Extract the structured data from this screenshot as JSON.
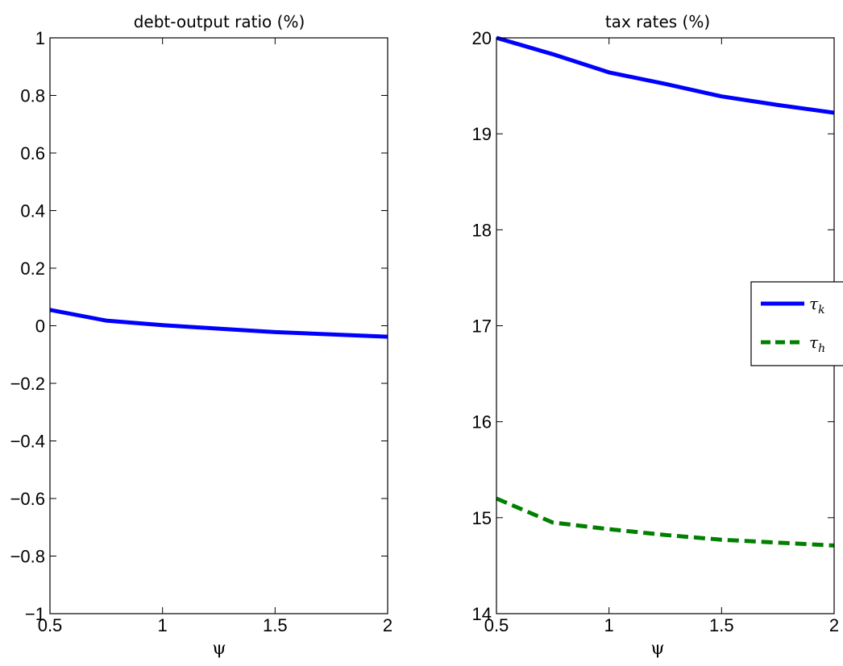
{
  "colors": {
    "series_tau_k": "#0000ff",
    "series_tau_h": "#007f00"
  },
  "chart_data": [
    {
      "type": "line",
      "title": "debt-output ratio (%)",
      "xlabel": "ψ",
      "ylabel": "",
      "xlim": [
        0.5,
        2
      ],
      "ylim": [
        -1,
        1
      ],
      "xticks": [
        0.5,
        1,
        1.5,
        2
      ],
      "xtick_labels": [
        "0.5",
        "1",
        "1.5",
        "2"
      ],
      "yticks": [
        -1,
        -0.8,
        -0.6,
        -0.4,
        -0.2,
        0,
        0.2,
        0.4,
        0.6,
        0.8,
        1
      ],
      "ytick_labels": [
        "−1",
        "−0.8",
        "−0.6",
        "−0.4",
        "−0.2",
        "0",
        "0.2",
        "0.4",
        "0.6",
        "0.8",
        "1"
      ],
      "grid": false,
      "series": [
        {
          "color": "#0000ff",
          "style": "solid",
          "x": [
            0.5,
            0.75,
            1,
            1.25,
            1.5,
            1.75,
            2
          ],
          "y": [
            0.055,
            0.018,
            0.002,
            -0.01,
            -0.022,
            -0.03,
            -0.038
          ]
        }
      ]
    },
    {
      "type": "line",
      "title": "tax rates (%)",
      "xlabel": "ψ",
      "ylabel": "",
      "xlim": [
        0.5,
        2
      ],
      "ylim": [
        14,
        20
      ],
      "xticks": [
        0.5,
        1,
        1.5,
        2
      ],
      "xtick_labels": [
        "0.5",
        "1",
        "1.5",
        "2"
      ],
      "yticks": [
        14,
        15,
        16,
        17,
        18,
        19,
        20
      ],
      "ytick_labels": [
        "14",
        "15",
        "16",
        "17",
        "18",
        "19",
        "20"
      ],
      "grid": false,
      "legend": {
        "placement": "right",
        "entries": [
          {
            "symbol": "τ",
            "subscript": "k",
            "color": "#0000ff",
            "style": "solid"
          },
          {
            "symbol": "τ",
            "subscript": "h",
            "color": "#007f00",
            "style": "dashed"
          }
        ]
      },
      "series": [
        {
          "name": "τk",
          "color": "#0000ff",
          "style": "solid",
          "x": [
            0.5,
            0.75,
            1,
            1.25,
            1.5,
            1.75,
            2
          ],
          "y": [
            20.0,
            19.83,
            19.64,
            19.52,
            19.39,
            19.3,
            19.22
          ]
        },
        {
          "name": "τh",
          "color": "#007f00",
          "style": "dashed",
          "x": [
            0.5,
            0.75,
            1,
            1.25,
            1.5,
            1.75,
            2
          ],
          "y": [
            15.2,
            14.95,
            14.88,
            14.82,
            14.77,
            14.74,
            14.71
          ]
        }
      ]
    }
  ]
}
